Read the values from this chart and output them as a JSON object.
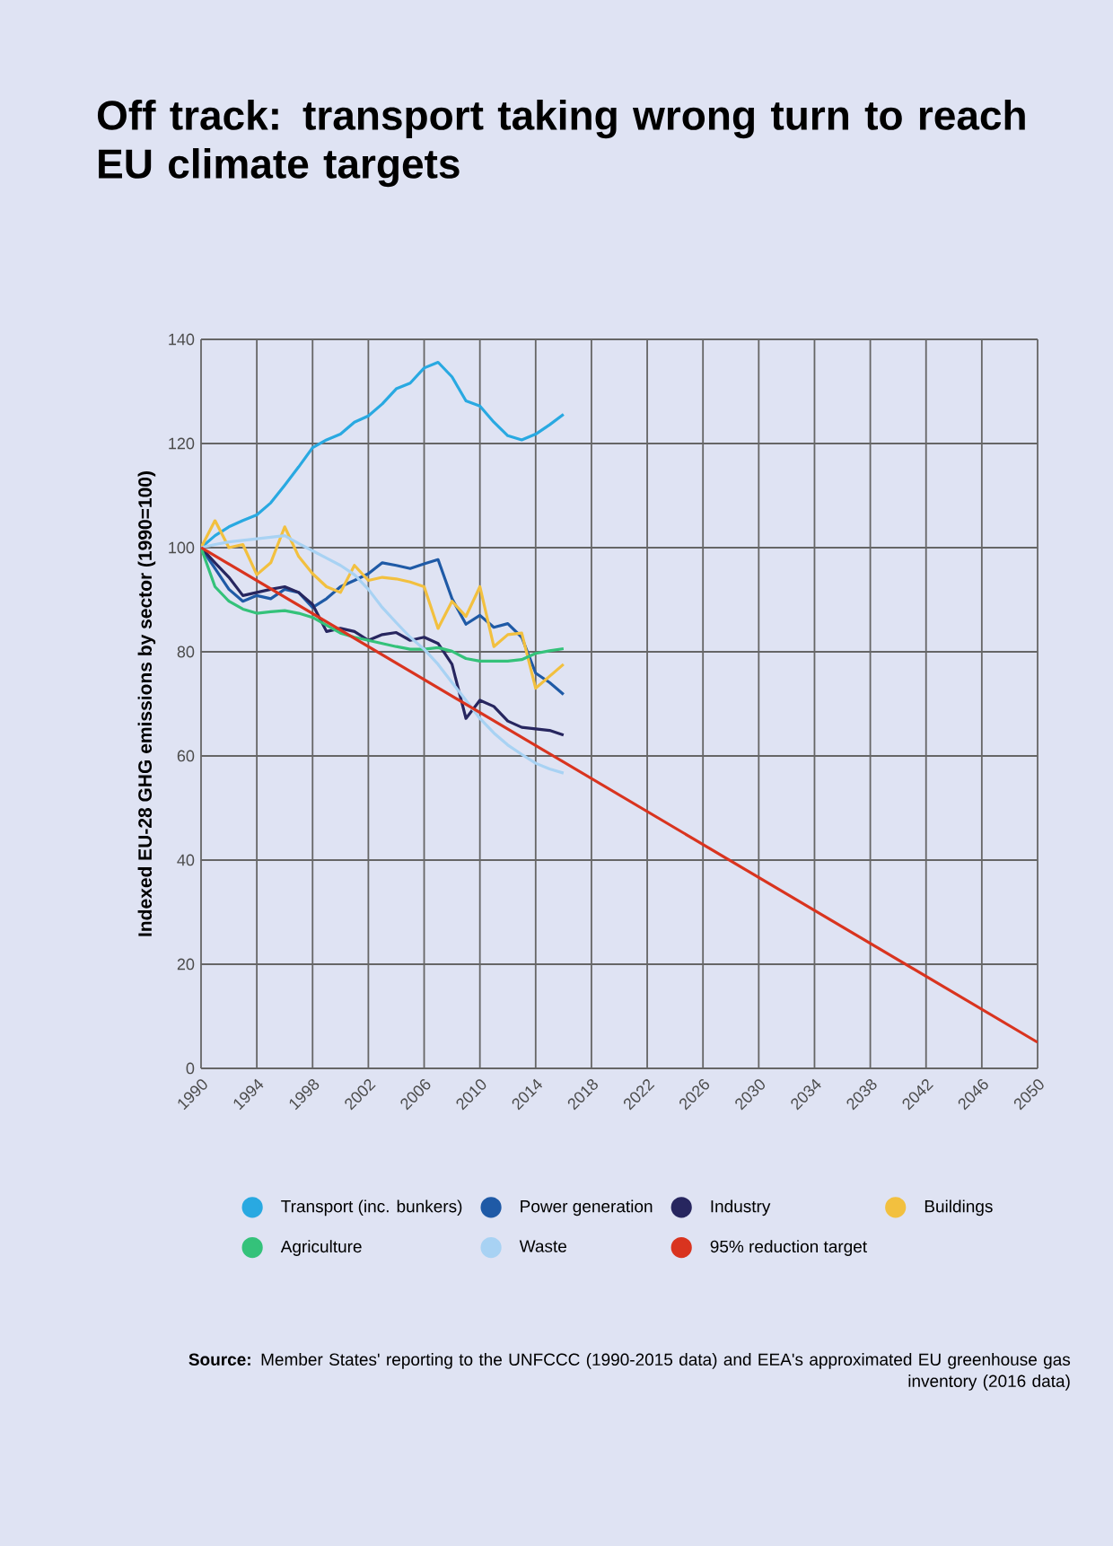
{
  "chart_data": {
    "type": "line",
    "title": "Off track: transport taking wrong turn to reach EU climate targets",
    "ylabel": "Indexed EU-28 GHG emissions by sector (1990=100)",
    "annotations": [
      "**Source:** Member States' reporting to the UNFCCC (1990-2015 data) and EEA's approximated EU greenhouse gas inventory (2016 data)"
    ],
    "x": [
      1990,
      1991,
      1992,
      1993,
      1994,
      1995,
      1996,
      1997,
      1998,
      1999,
      2000,
      2001,
      2002,
      2003,
      2004,
      2005,
      2006,
      2007,
      2008,
      2009,
      2010,
      2011,
      2012,
      2013,
      2014,
      2015,
      2016
    ],
    "series": [
      {
        "name": "Transport (inc. bunkers)",
        "color": "#29a9e1",
        "values": [
          100,
          102.3,
          104,
          105.2,
          106.3,
          108.6,
          112,
          115.5,
          119.2,
          120.7,
          121.8,
          124.1,
          125.3,
          127.6,
          130.5,
          131.6,
          134.5,
          135.6,
          132.8,
          128.2,
          127.2,
          124.1,
          121.5,
          120.7,
          121.8,
          123.6,
          125.6
        ]
      },
      {
        "name": "Power generation",
        "color": "#1f5aa6",
        "values": [
          100,
          96,
          92,
          89.7,
          90.8,
          90.2,
          92,
          91.4,
          88.5,
          90.2,
          92.5,
          93.7,
          95,
          97.1,
          96.6,
          96,
          96.9,
          97.7,
          90.2,
          85.3,
          87,
          84.7,
          85.4,
          82.8,
          75.9,
          74.1,
          71.8
        ]
      },
      {
        "name": "Industry",
        "color": "#27265f",
        "values": [
          100,
          97.1,
          94.3,
          90.8,
          91.4,
          92,
          92.5,
          91.4,
          89.1,
          83.9,
          84.5,
          83.9,
          82.2,
          83.3,
          83.7,
          82.2,
          82.8,
          81.6,
          77.6,
          67.2,
          70.7,
          69.5,
          66.7,
          65.5,
          65.2,
          64.9,
          64
        ]
      },
      {
        "name": "Buildings",
        "color": "#f2c03f",
        "values": [
          100,
          105.2,
          100,
          100.6,
          94.8,
          97.1,
          104,
          98.3,
          95,
          92.5,
          91.4,
          96.6,
          93.7,
          94.3,
          94,
          93.4,
          92.5,
          84.5,
          89.7,
          86.8,
          92.5,
          81,
          83.3,
          83.6,
          73,
          75.3,
          77.6
        ]
      },
      {
        "name": "Agriculture",
        "color": "#34c27a",
        "values": [
          100,
          92.5,
          89.7,
          88.2,
          87.4,
          87.7,
          87.9,
          87.4,
          86.6,
          85.1,
          83.6,
          82.8,
          82.2,
          81.6,
          81,
          80.5,
          80.5,
          80.8,
          80.1,
          78.7,
          78.2,
          78.2,
          78.2,
          78.5,
          79.7,
          80.2,
          80.6
        ]
      },
      {
        "name": "Waste",
        "color": "#a8d2f3",
        "values": [
          100,
          100.6,
          101.1,
          101.4,
          101.7,
          102,
          102.3,
          100.8,
          99.4,
          98,
          96.6,
          94.8,
          92,
          88.5,
          85.6,
          82.8,
          80.5,
          77.6,
          74.1,
          70.7,
          67.2,
          64.4,
          62.1,
          60.3,
          58.6,
          57.5,
          56.7
        ]
      },
      {
        "name": "95% reduction target",
        "color": "#d9341f",
        "x": [
          1990,
          2050
        ],
        "values": [
          100,
          5
        ]
      }
    ],
    "xlim": [
      1990,
      2050
    ],
    "xticks": [
      1990,
      1994,
      1998,
      2002,
      2006,
      2010,
      2014,
      2018,
      2022,
      2026,
      2030,
      2034,
      2038,
      2042,
      2046,
      2050
    ],
    "ylim": [
      0,
      140
    ],
    "yticks": [
      0,
      20,
      40,
      60,
      80,
      100,
      120,
      140
    ],
    "grid": true,
    "legend": "bottom",
    "line_style": "solid"
  }
}
